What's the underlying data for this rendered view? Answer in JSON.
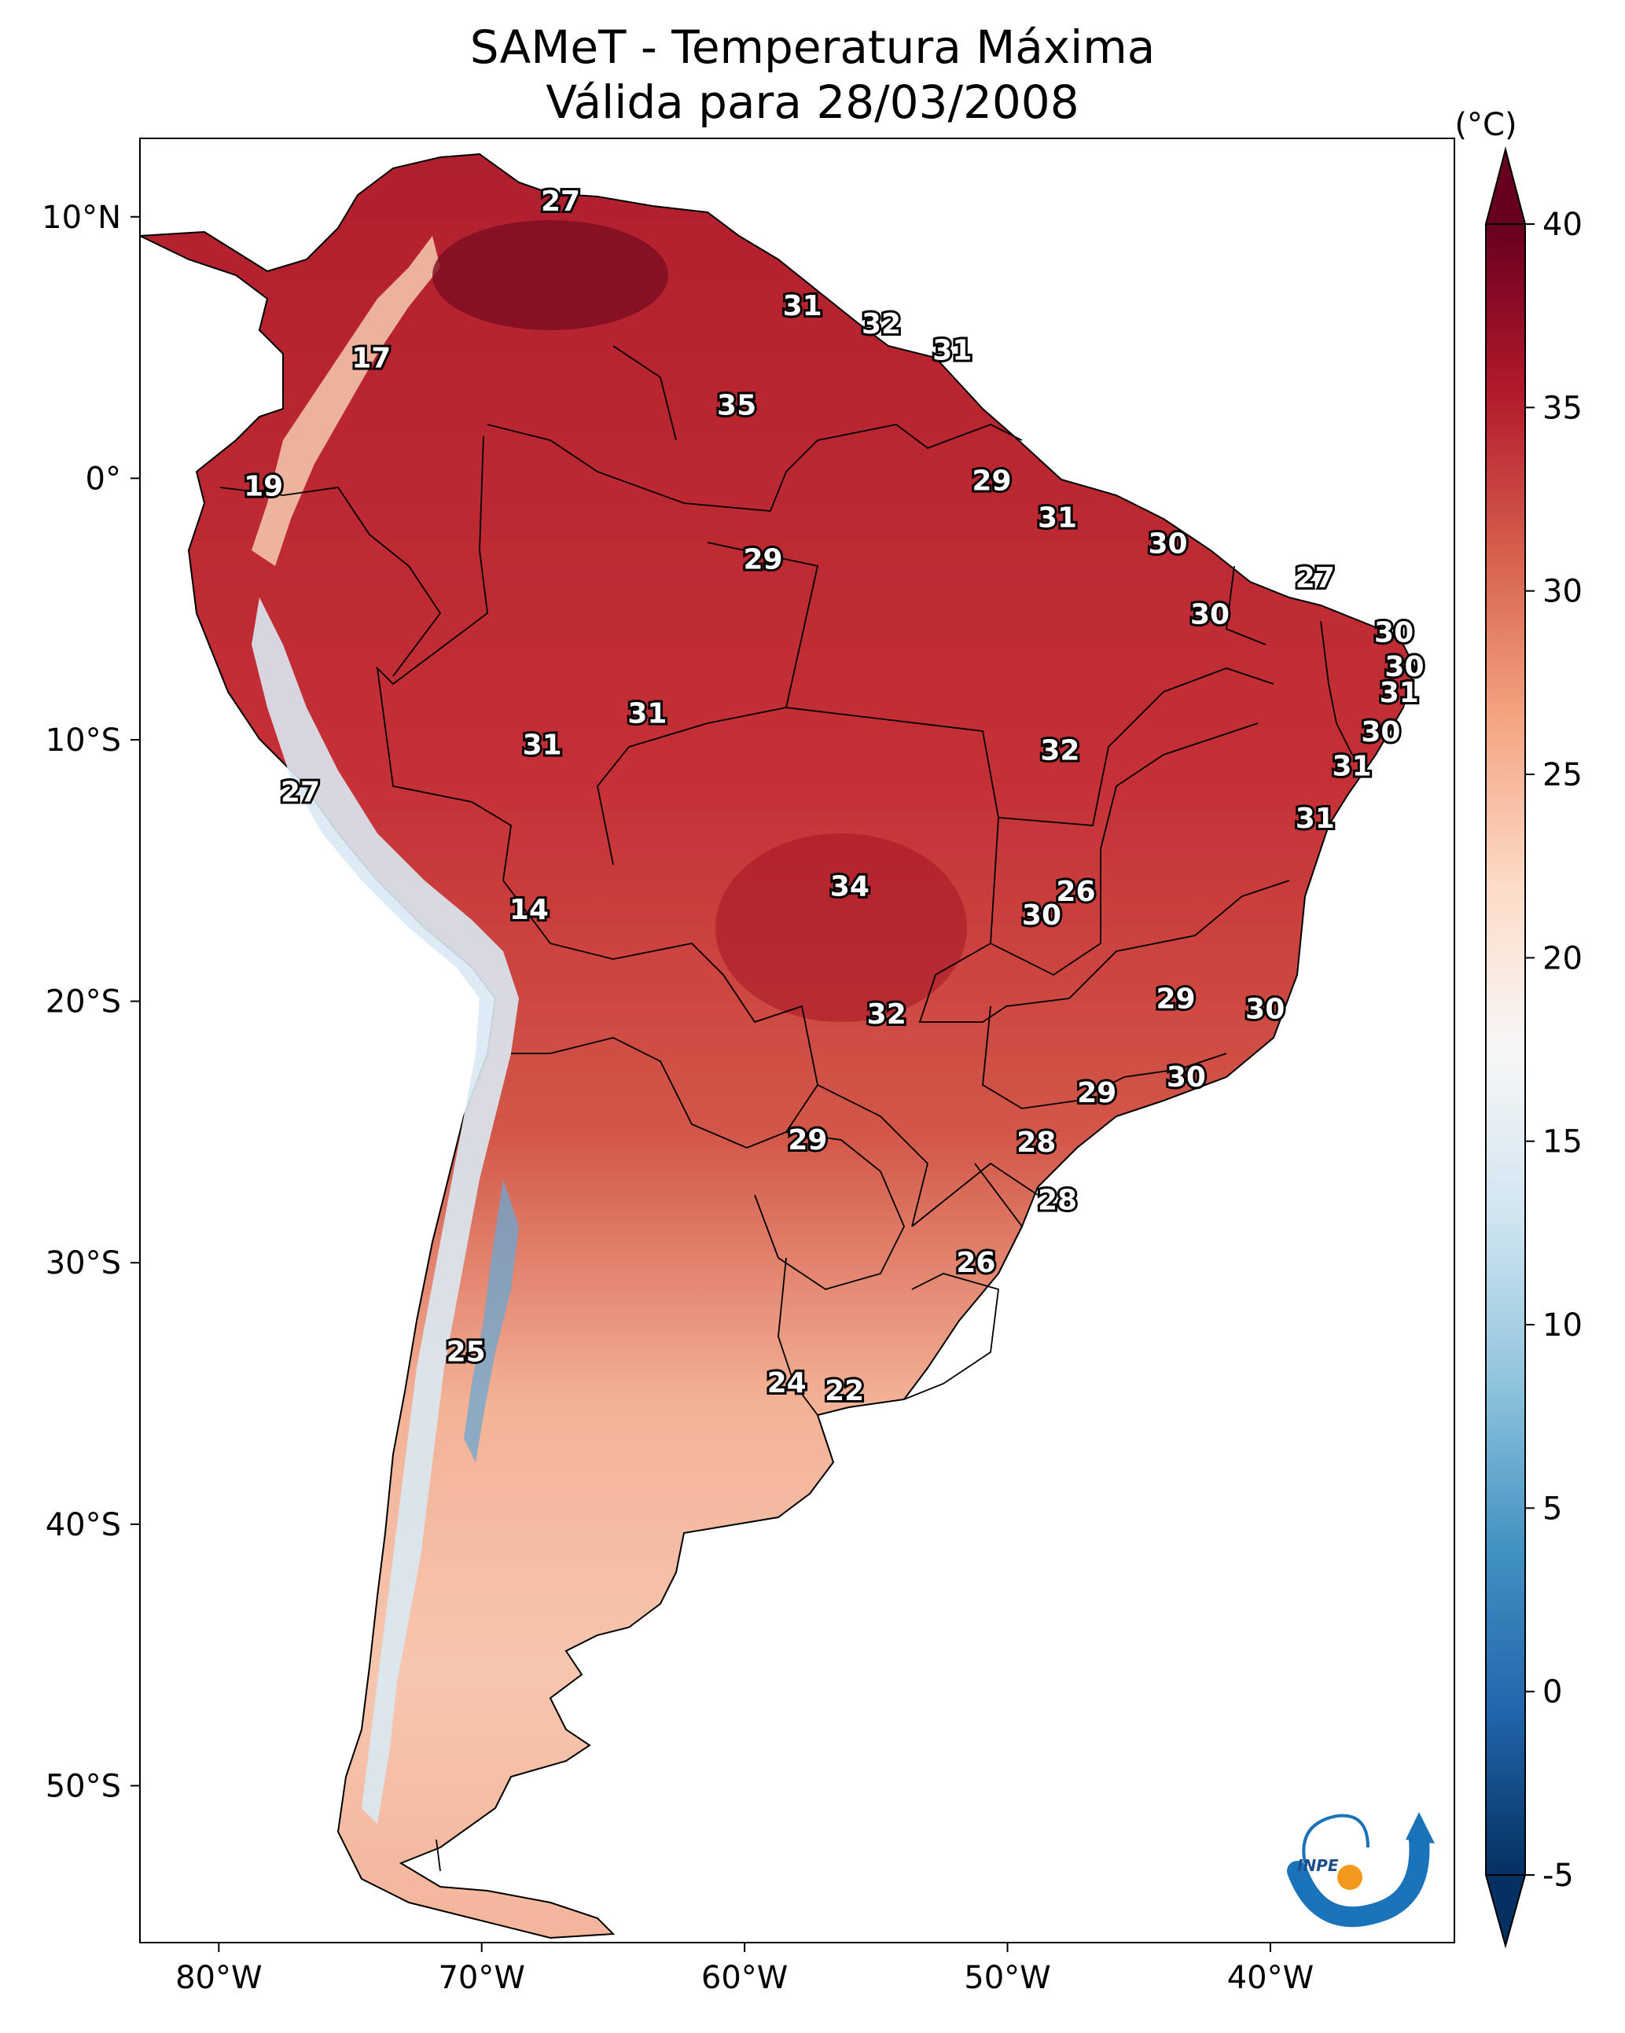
{
  "title": {
    "line1": "SAMeT - Temperatura Máxima",
    "line2": "Válida para 28/03/2008"
  },
  "map": {
    "lon_ticks": [
      {
        "lon": -80,
        "label": "80°W"
      },
      {
        "lon": -70,
        "label": "70°W"
      },
      {
        "lon": -60,
        "label": "60°W"
      },
      {
        "lon": -50,
        "label": "50°W"
      },
      {
        "lon": -40,
        "label": "40°W"
      }
    ],
    "lat_ticks": [
      {
        "lat": 10,
        "label": "10°N"
      },
      {
        "lat": 0,
        "label": "0°"
      },
      {
        "lat": -10,
        "label": "10°S"
      },
      {
        "lat": -20,
        "label": "20°S"
      },
      {
        "lat": -30,
        "label": "30°S"
      },
      {
        "lat": -40,
        "label": "40°S"
      },
      {
        "lat": -50,
        "label": "50°S"
      }
    ],
    "extent": {
      "lon_min": -83,
      "lon_max": -33,
      "lat_min": -56,
      "lat_max": 13
    },
    "annotations": [
      {
        "lon": -67,
        "lat": 10.6,
        "value": "27"
      },
      {
        "lon": -57.8,
        "lat": 6.6,
        "value": "31"
      },
      {
        "lon": -54.8,
        "lat": 5.9,
        "value": "32"
      },
      {
        "lon": -52.1,
        "lat": 4.9,
        "value": "31"
      },
      {
        "lon": -74.2,
        "lat": 4.6,
        "value": "17"
      },
      {
        "lon": -60.3,
        "lat": 2.8,
        "value": "35"
      },
      {
        "lon": -78.3,
        "lat": -0.3,
        "value": "19"
      },
      {
        "lon": -50.6,
        "lat": -0.1,
        "value": "29"
      },
      {
        "lon": -48.1,
        "lat": -1.5,
        "value": "31"
      },
      {
        "lon": -43.9,
        "lat": -2.5,
        "value": "30"
      },
      {
        "lon": -59.3,
        "lat": -3.1,
        "value": "29"
      },
      {
        "lon": -38.3,
        "lat": -3.8,
        "value": "27"
      },
      {
        "lon": -42.3,
        "lat": -5.2,
        "value": "30"
      },
      {
        "lon": -35.3,
        "lat": -5.9,
        "value": "30"
      },
      {
        "lon": -34.9,
        "lat": -7.2,
        "value": "30"
      },
      {
        "lon": -35.1,
        "lat": -8.2,
        "value": "31"
      },
      {
        "lon": -63.7,
        "lat": -9.0,
        "value": "31"
      },
      {
        "lon": -35.8,
        "lat": -9.7,
        "value": "30"
      },
      {
        "lon": -67.7,
        "lat": -10.2,
        "value": "31"
      },
      {
        "lon": -48.0,
        "lat": -10.4,
        "value": "32"
      },
      {
        "lon": -36.9,
        "lat": -11.0,
        "value": "31"
      },
      {
        "lon": -76.9,
        "lat": -12.0,
        "value": "27"
      },
      {
        "lon": -38.3,
        "lat": -13.0,
        "value": "31"
      },
      {
        "lon": -56.0,
        "lat": -15.6,
        "value": "34"
      },
      {
        "lon": -47.4,
        "lat": -15.8,
        "value": "26"
      },
      {
        "lon": -48.7,
        "lat": -16.7,
        "value": "30"
      },
      {
        "lon": -68.2,
        "lat": -16.5,
        "value": "14"
      },
      {
        "lon": -43.6,
        "lat": -19.9,
        "value": "29"
      },
      {
        "lon": -40.2,
        "lat": -20.3,
        "value": "30"
      },
      {
        "lon": -54.6,
        "lat": -20.5,
        "value": "32"
      },
      {
        "lon": -43.2,
        "lat": -22.9,
        "value": "30"
      },
      {
        "lon": -46.6,
        "lat": -23.5,
        "value": "29"
      },
      {
        "lon": -57.6,
        "lat": -25.3,
        "value": "29"
      },
      {
        "lon": -48.9,
        "lat": -25.4,
        "value": "28"
      },
      {
        "lon": -48.1,
        "lat": -27.6,
        "value": "28"
      },
      {
        "lon": -51.2,
        "lat": -30.0,
        "value": "26"
      },
      {
        "lon": -70.6,
        "lat": -33.4,
        "value": "25"
      },
      {
        "lon": -58.4,
        "lat": -34.6,
        "value": "24"
      },
      {
        "lon": -56.2,
        "lat": -34.9,
        "value": "22"
      }
    ]
  },
  "colorbar": {
    "unit": "(°C)",
    "min": -5,
    "max": 40,
    "ticks": [
      "40",
      "35",
      "30",
      "25",
      "20",
      "15",
      "10",
      "5",
      "0",
      "-5"
    ],
    "colors": [
      "#053061",
      "#2166ac",
      "#4393c3",
      "#92c5de",
      "#d1e5f0",
      "#f7f7f7",
      "#fddbc7",
      "#f4a582",
      "#d6604d",
      "#b2182b",
      "#67001f"
    ]
  },
  "logo": {
    "text": "INPE"
  }
}
